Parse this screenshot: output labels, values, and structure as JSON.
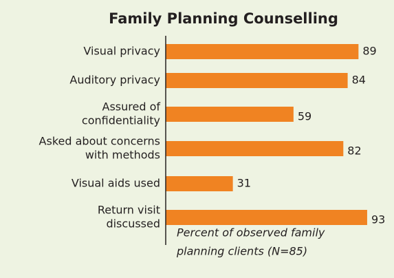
{
  "chart_data": {
    "type": "bar",
    "orientation": "horizontal",
    "title": "Family Planning Counselling",
    "categories": [
      [
        "Visual privacy"
      ],
      [
        "Auditory privacy"
      ],
      [
        "Assured of",
        "confidentiality"
      ],
      [
        "Asked about concerns",
        "with methods"
      ],
      [
        "Visual aids used"
      ],
      [
        "Return visit",
        "discussed"
      ]
    ],
    "values": [
      89,
      84,
      59,
      82,
      31,
      93
    ],
    "color": "#f08322",
    "xlabel": [
      "Percent of observed family",
      "planning clients (N=85)"
    ],
    "xlim": [
      0,
      100
    ]
  }
}
